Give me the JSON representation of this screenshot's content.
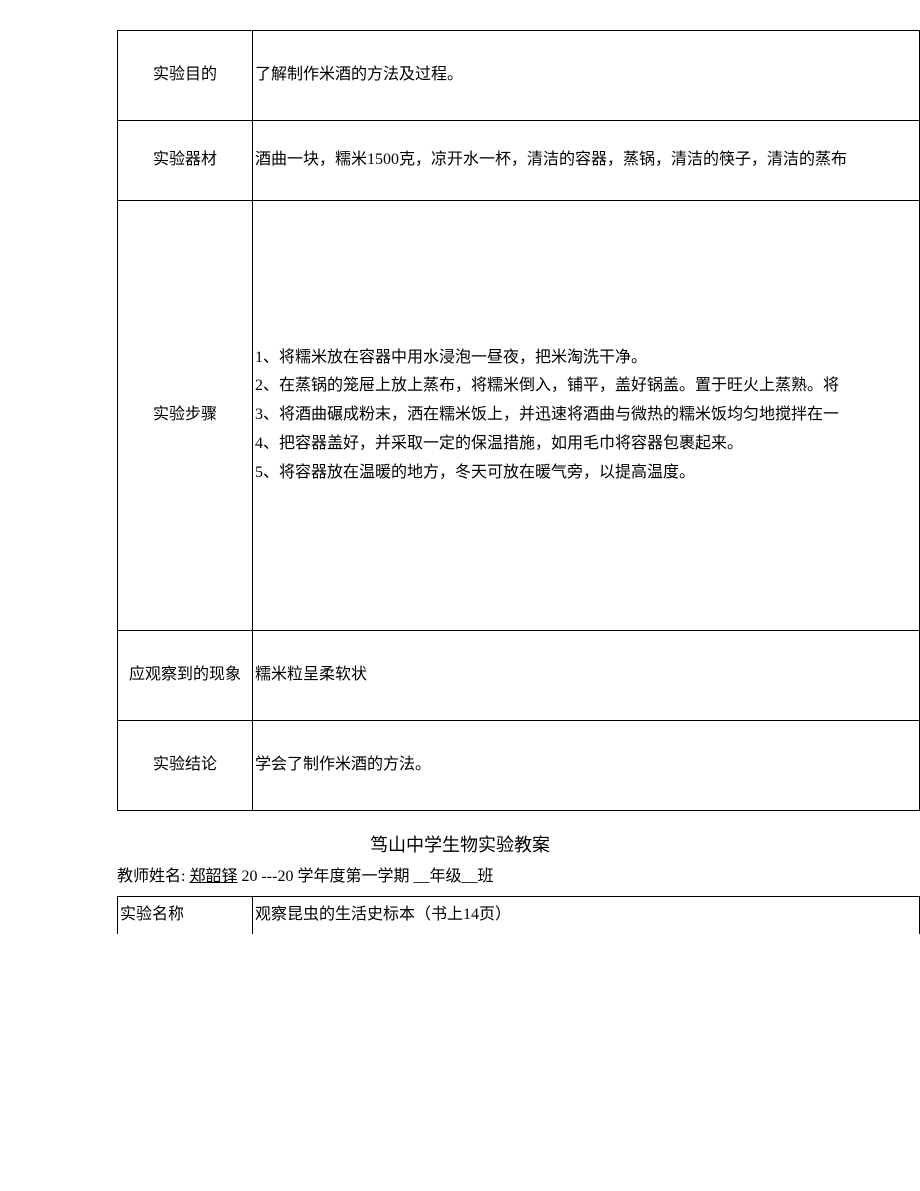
{
  "table1": {
    "purpose": {
      "label": "实验目的",
      "content": "了解制作米酒的方法及过程。"
    },
    "materials": {
      "label": "实验器材",
      "content": "酒曲一块，糯米1500克，凉开水一杯，清洁的容器，蒸锅，清洁的筷子，清洁的蒸布"
    },
    "steps": {
      "label": "实验步骤",
      "content": "1、将糯米放在容器中用水浸泡一昼夜，把米淘洗干净。\n2、在蒸锅的笼屉上放上蒸布，将糯米倒入，铺平，盖好锅盖。置于旺火上蒸熟。将\n3、将酒曲碾成粉末，洒在糯米饭上，并迅速将酒曲与微热的糯米饭均匀地搅拌在一\n4、把容器盖好，并采取一定的保温措施，如用毛巾将容器包裹起来。\n5、将容器放在温暖的地方，冬天可放在暖气旁，以提高温度。"
    },
    "phenomenon": {
      "label": "应观察到的现象",
      "content": "糯米粒呈柔软状"
    },
    "conclusion": {
      "label": "实验结论",
      "content": "学会了制作米酒的方法。"
    }
  },
  "section": {
    "title": "笃山中学生物实验教案",
    "teacher_label": "教师姓名: ",
    "teacher_name": "郑韶铎",
    "term_part1": "  20  ---20   学年度第一学期   __年级__班"
  },
  "table2": {
    "exp_name_label": "实验名称",
    "exp_name_content": "观察昆虫的生活史标本（书上14页）"
  }
}
